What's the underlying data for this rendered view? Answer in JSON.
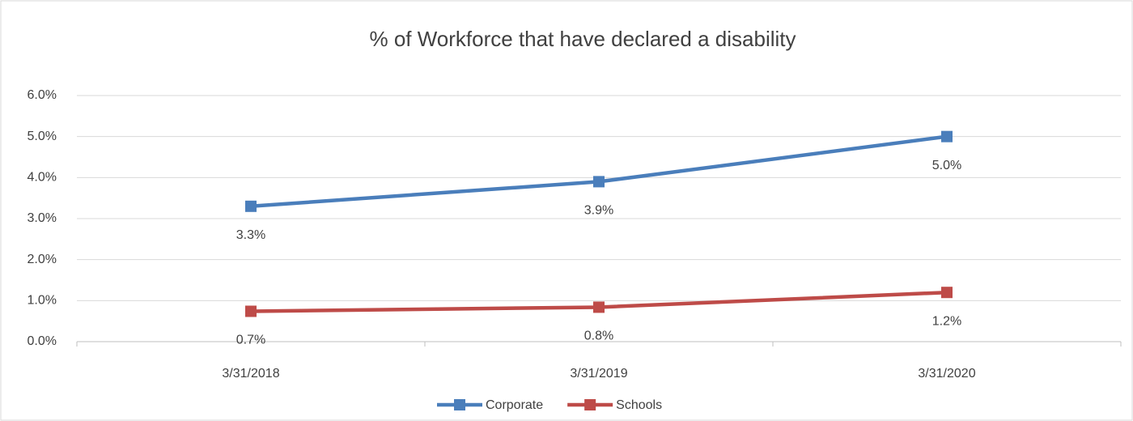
{
  "chart_data": {
    "type": "line",
    "title": "% of Workforce that have declared a disability",
    "categories": [
      "3/31/2018",
      "3/31/2019",
      "3/31/2020"
    ],
    "series": [
      {
        "name": "Corporate",
        "color": "#4a7ebb",
        "values": [
          3.3,
          3.9,
          5.0
        ],
        "value_labels": [
          "3.3%",
          "3.9%",
          "5.0%"
        ]
      },
      {
        "name": "Schools",
        "color": "#be4b48",
        "values": [
          0.74,
          0.84,
          1.2
        ],
        "value_labels": [
          "0.7%",
          "0.8%",
          "1.2%"
        ]
      }
    ],
    "ylim": [
      0,
      6
    ],
    "yticks": [
      {
        "value": 0,
        "label": "0.0%"
      },
      {
        "value": 1,
        "label": "1.0%"
      },
      {
        "value": 2,
        "label": "2.0%"
      },
      {
        "value": 3,
        "label": "3.0%"
      },
      {
        "value": 4,
        "label": "4.0%"
      },
      {
        "value": 5,
        "label": "5.0%"
      },
      {
        "value": 6,
        "label": "6.0%"
      }
    ],
    "grid": true,
    "legend": "bottom"
  }
}
